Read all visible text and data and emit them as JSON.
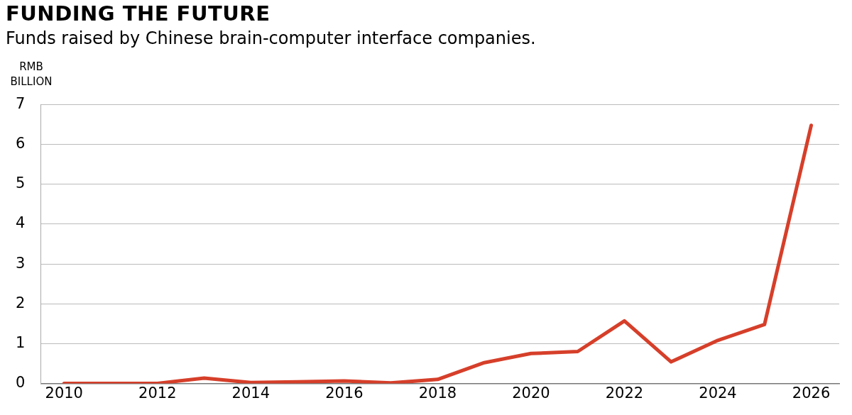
{
  "chart_data": {
    "type": "line",
    "title": "FUNDING THE FUTURE",
    "subtitle": "Funds raised by Chinese brain-computer interface companies.",
    "ylabel": "RMB BILLION",
    "x": [
      2010,
      2011,
      2012,
      2013,
      2014,
      2015,
      2016,
      2017,
      2018,
      2019,
      2020,
      2021,
      2022,
      2023,
      2024,
      2025,
      2026
    ],
    "series": [
      {
        "color": "#d63f2a",
        "values": [
          0,
          0,
          0,
          0.13,
          0.02,
          0.04,
          0.06,
          0.01,
          0.1,
          0.52,
          0.75,
          0.8,
          1.57,
          0.54,
          1.08,
          1.48,
          6.48
        ]
      }
    ],
    "xlim": [
      2009.5,
      2026.6
    ],
    "xticks": [
      2010,
      2012,
      2014,
      2016,
      2018,
      2020,
      2022,
      2024,
      2026
    ],
    "ylim": [
      0,
      7
    ],
    "yticks": [
      0,
      1,
      2,
      3,
      4,
      5,
      6,
      7
    ],
    "grid": "y",
    "legend": false,
    "marker": "none",
    "line_style": "solid"
  }
}
